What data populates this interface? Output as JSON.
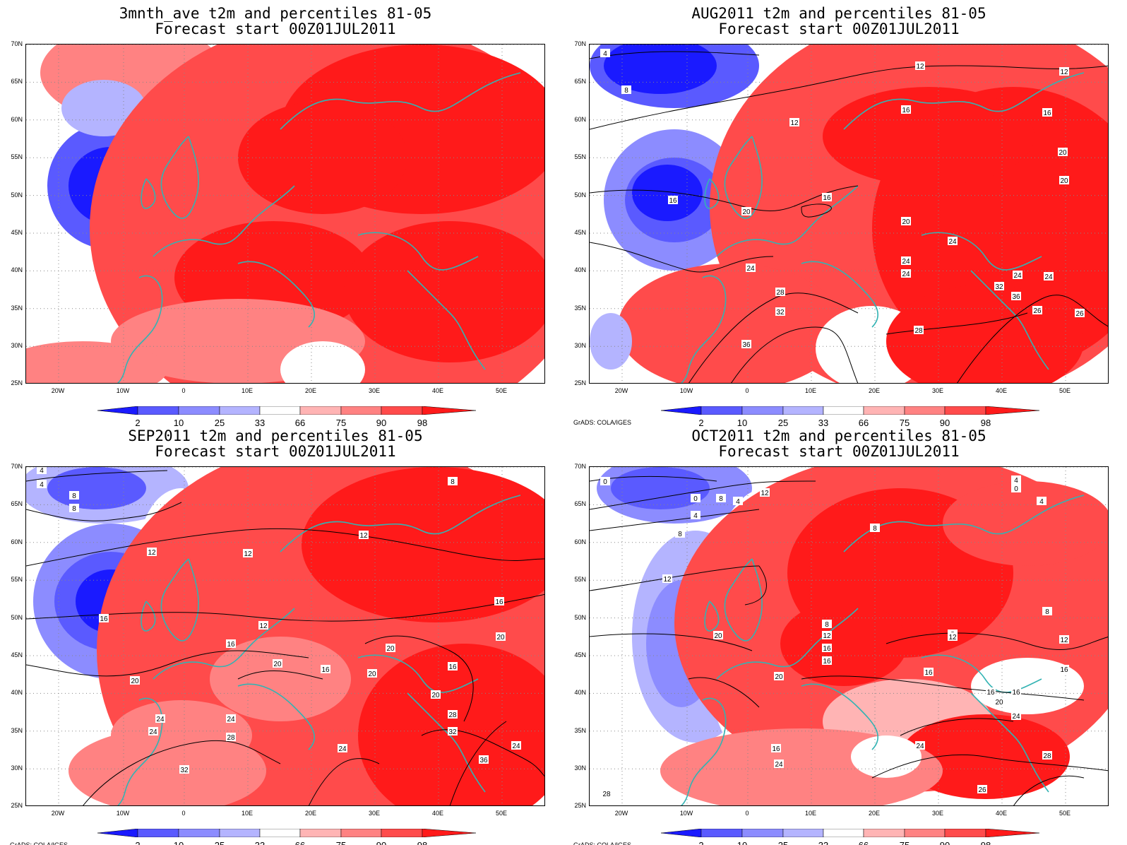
{
  "panels": [
    {
      "title": "3mnth_ave t2m and percentiles 81-05",
      "subtitle": "Forecast start 00Z01JUL2011",
      "credit": "",
      "contour_labels": []
    },
    {
      "title": "AUG2011 t2m and percentiles 81-05",
      "subtitle": "Forecast start 00Z01JUL2011",
      "credit": "GrADS: COLA/IGES",
      "contour_labels": [
        "4",
        "8",
        "12",
        "12",
        "12",
        "16",
        "16",
        "16",
        "16",
        "20",
        "20",
        "20",
        "20",
        "24",
        "24",
        "24",
        "24",
        "24",
        "24",
        "28",
        "28",
        "32",
        "32",
        "36",
        "36",
        "26",
        "26"
      ]
    },
    {
      "title": "SEP2011 t2m and percentiles 81-05",
      "subtitle": "Forecast start 00Z01JUL2011",
      "credit": "GrADS: COLA/IGES",
      "contour_labels": [
        "4",
        "4",
        "8",
        "8",
        "8",
        "12",
        "12",
        "12",
        "12",
        "16",
        "16",
        "16",
        "16",
        "16",
        "20",
        "20",
        "20",
        "20",
        "20",
        "20",
        "24",
        "24",
        "24",
        "24",
        "24",
        "24",
        "28",
        "28",
        "32",
        "32",
        "36"
      ]
    },
    {
      "title": "OCT2011 t2m and percentiles 81-05",
      "subtitle": "Forecast start 00Z01JUL2011",
      "credit": "GrADS: COLA/IGES",
      "contour_labels": [
        "0",
        "0",
        "0",
        "4",
        "4",
        "4",
        "4",
        "8",
        "8",
        "8",
        "8",
        "8",
        "8",
        "12",
        "12",
        "12",
        "12",
        "12",
        "16",
        "16",
        "16",
        "16",
        "16",
        "16",
        "16",
        "20",
        "20",
        "20",
        "24",
        "24",
        "24",
        "26",
        "28",
        "28"
      ]
    }
  ],
  "axes": {
    "lat_labels": [
      "70N",
      "65N",
      "60N",
      "55N",
      "50N",
      "45N",
      "40N",
      "35N",
      "30N",
      "25N"
    ],
    "lon_labels": [
      "20W",
      "10W",
      "0",
      "10E",
      "20E",
      "30E",
      "40E",
      "50E"
    ]
  },
  "colorbar": {
    "labels": [
      "2",
      "10",
      "25",
      "33",
      "66",
      "75",
      "90",
      "98"
    ],
    "colors": [
      "#1a1aff",
      "#5a5aff",
      "#8c8cff",
      "#b4b4ff",
      "#ffffff",
      "#ffb4b4",
      "#ff8282",
      "#ff4b4b",
      "#ff1a1a"
    ]
  }
}
